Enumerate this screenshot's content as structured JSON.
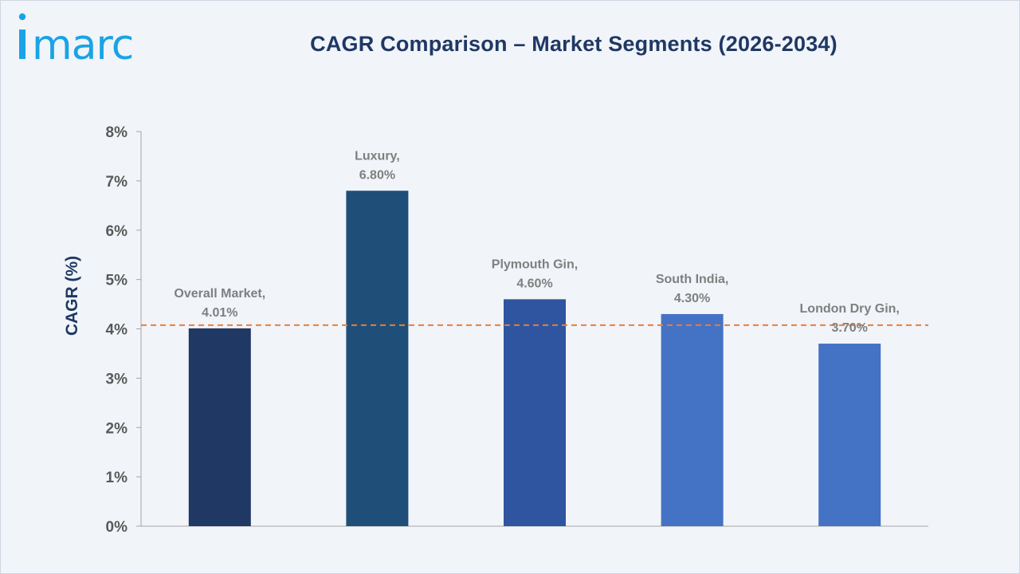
{
  "brand": {
    "logo_text": "imarc",
    "logo_color": "#1aa3e6"
  },
  "chart_data": {
    "type": "bar",
    "title": "CAGR Comparison – Market Segments (2026-2034)",
    "xlabel": "",
    "ylabel": "CAGR (%)",
    "ylim": [
      0,
      8
    ],
    "yticks": [
      "0%",
      "1%",
      "2%",
      "3%",
      "4%",
      "5%",
      "6%",
      "7%",
      "8%"
    ],
    "categories": [
      "Overall Market",
      "Luxury",
      "Plymouth Gin",
      "South India",
      "London Dry Gin"
    ],
    "values": [
      4.01,
      6.8,
      4.6,
      4.3,
      3.7
    ],
    "data_labels": [
      [
        "Overall Market,",
        "4.01%"
      ],
      [
        "Luxury,",
        "6.80%"
      ],
      [
        "Plymouth Gin,",
        "4.60%"
      ],
      [
        "South India,",
        "4.30%"
      ],
      [
        "London Dry Gin,",
        "3.70%"
      ]
    ],
    "bar_colors": [
      "#203864",
      "#1f4e79",
      "#2f55a0",
      "#4472c4",
      "#4472c4"
    ],
    "reference_line": {
      "value": 4.01,
      "color": "#ed7d31",
      "style": "dashed"
    },
    "grid": false,
    "legend": "none"
  }
}
